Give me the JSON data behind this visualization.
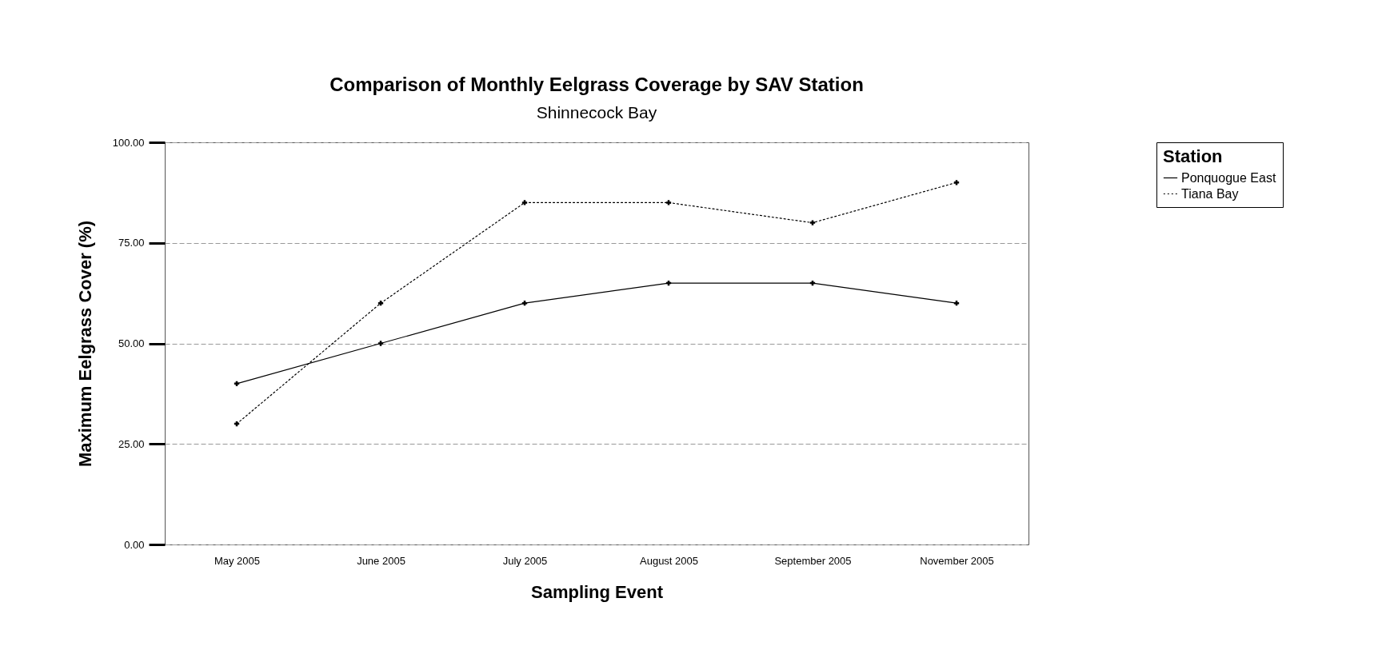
{
  "chart_data": {
    "type": "line",
    "title": "Comparison of Monthly Eelgrass Coverage by SAV Station",
    "subtitle": "Shinnecock Bay",
    "xlabel": "Sampling Event",
    "ylabel": "Maximum Eelgrass Cover (%)",
    "legend_title": "Station",
    "categories": [
      "May 2005",
      "June 2005",
      "July 2005",
      "August 2005",
      "September 2005",
      "November 2005"
    ],
    "series": [
      {
        "name": "Ponquogue East",
        "color": "#000000",
        "line_style": "solid",
        "values": [
          40,
          50,
          60,
          65,
          65,
          60
        ]
      },
      {
        "name": "Tiana Bay",
        "color": "#000000",
        "line_style": "dotted",
        "values": [
          30,
          60,
          85,
          85,
          80,
          90
        ]
      }
    ],
    "ylim": [
      0,
      100
    ],
    "yticks": [
      {
        "value": 0,
        "label": "0.00"
      },
      {
        "value": 25,
        "label": "25.00"
      },
      {
        "value": 50,
        "label": "50.00"
      },
      {
        "value": 75,
        "label": "75.00"
      },
      {
        "value": 100,
        "label": "100.00"
      }
    ],
    "grid": "y",
    "legend": "top right",
    "marker": "cross"
  }
}
